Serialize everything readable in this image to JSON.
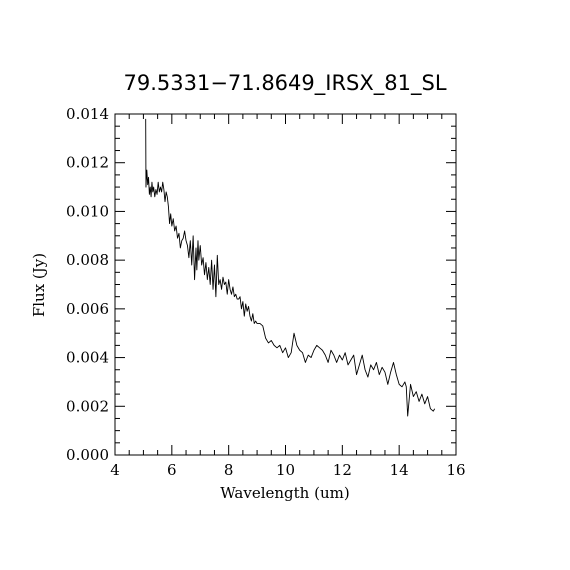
{
  "chart_data": {
    "type": "line",
    "title": "79.5331−71.8649_IRSX_81_SL",
    "xlabel": "Wavelength (um)",
    "ylabel": "Flux (Jy)",
    "xlim": [
      4,
      16
    ],
    "ylim": [
      0,
      0.014
    ],
    "xticks": [
      "4",
      "6",
      "8",
      "10",
      "12",
      "14",
      "16"
    ],
    "yticks": [
      "0.000",
      "0.002",
      "0.004",
      "0.006",
      "0.008",
      "0.010",
      "0.012",
      "0.014"
    ],
    "grid": false,
    "legend": "none",
    "line_color": "#000000",
    "series": [
      {
        "x": [
          5.08,
          5.09,
          5.12,
          5.15,
          5.18,
          5.21,
          5.24,
          5.27,
          5.3,
          5.33,
          5.36,
          5.4,
          5.44,
          5.48,
          5.52,
          5.56,
          5.6,
          5.64,
          5.68,
          5.72,
          5.76,
          5.8,
          5.84,
          5.88,
          5.92,
          5.96,
          6.0,
          6.05,
          6.1,
          6.15,
          6.2,
          6.25,
          6.3,
          6.35,
          6.4,
          6.45,
          6.5,
          6.55,
          6.6,
          6.65,
          6.7,
          6.75,
          6.8,
          6.85,
          6.88,
          6.92,
          6.95,
          7.0,
          7.05,
          7.1,
          7.15,
          7.2,
          7.25,
          7.3,
          7.35,
          7.4,
          7.45,
          7.5,
          7.55,
          7.6,
          7.65,
          7.7,
          7.75,
          7.8,
          7.85,
          7.9,
          7.95,
          8.0,
          8.05,
          8.1,
          8.15,
          8.2,
          8.25,
          8.3,
          8.35,
          8.4,
          8.45,
          8.5,
          8.55,
          8.6,
          8.65,
          8.7,
          8.75,
          8.8,
          8.85,
          8.9,
          8.95,
          9.0,
          9.05,
          9.1,
          9.2,
          9.3,
          9.4,
          9.5,
          9.6,
          9.7,
          9.8,
          9.9,
          10.0,
          10.1,
          10.2,
          10.3,
          10.4,
          10.5,
          10.6,
          10.7,
          10.8,
          10.9,
          11.0,
          11.1,
          11.2,
          11.3,
          11.4,
          11.5,
          11.6,
          11.7,
          11.8,
          11.9,
          12.0,
          12.1,
          12.2,
          12.3,
          12.4,
          12.5,
          12.6,
          12.7,
          12.8,
          12.9,
          13.0,
          13.1,
          13.2,
          13.3,
          13.4,
          13.5,
          13.6,
          13.7,
          13.8,
          13.9,
          14.0,
          14.1,
          14.2,
          14.25,
          14.3,
          14.4,
          14.5,
          14.6,
          14.7,
          14.8,
          14.9,
          15.0,
          15.1,
          15.2,
          15.25
        ],
        "y": [
          0.0138,
          0.011,
          0.0117,
          0.0111,
          0.0114,
          0.0107,
          0.011,
          0.0106,
          0.0112,
          0.0108,
          0.011,
          0.0106,
          0.0109,
          0.0107,
          0.0112,
          0.0108,
          0.011,
          0.0108,
          0.0112,
          0.0109,
          0.0104,
          0.0108,
          0.0106,
          0.0102,
          0.0095,
          0.0099,
          0.0094,
          0.0097,
          0.0092,
          0.0094,
          0.0089,
          0.0091,
          0.0085,
          0.0088,
          0.0089,
          0.0092,
          0.0088,
          0.0086,
          0.0081,
          0.0088,
          0.0078,
          0.009,
          0.0072,
          0.0085,
          0.0076,
          0.0088,
          0.008,
          0.0086,
          0.0078,
          0.0081,
          0.0074,
          0.0079,
          0.0072,
          0.0077,
          0.007,
          0.008,
          0.0068,
          0.0078,
          0.0065,
          0.0082,
          0.007,
          0.0072,
          0.0068,
          0.0073,
          0.007,
          0.0071,
          0.0066,
          0.0072,
          0.0068,
          0.0066,
          0.0069,
          0.0065,
          0.0066,
          0.0064,
          0.0064,
          0.0065,
          0.006,
          0.0063,
          0.0057,
          0.0062,
          0.0059,
          0.0061,
          0.0057,
          0.0055,
          0.0058,
          0.0054,
          0.0055,
          0.0054,
          0.0054,
          0.0054,
          0.0053,
          0.0048,
          0.0046,
          0.0047,
          0.0045,
          0.0044,
          0.0045,
          0.0042,
          0.0044,
          0.004,
          0.0042,
          0.005,
          0.0045,
          0.0043,
          0.0042,
          0.0038,
          0.0041,
          0.004,
          0.0043,
          0.0045,
          0.0044,
          0.0043,
          0.0041,
          0.0038,
          0.0043,
          0.0041,
          0.0038,
          0.0041,
          0.0039,
          0.0042,
          0.0037,
          0.0039,
          0.0041,
          0.0033,
          0.0037,
          0.0041,
          0.0035,
          0.0032,
          0.0037,
          0.0035,
          0.0038,
          0.0033,
          0.0036,
          0.0034,
          0.0029,
          0.0034,
          0.0038,
          0.0033,
          0.0029,
          0.0028,
          0.003,
          0.0028,
          0.0016,
          0.0029,
          0.0024,
          0.0026,
          0.0022,
          0.0025,
          0.0021,
          0.0024,
          0.0019,
          0.0018,
          0.0019
        ]
      }
    ]
  }
}
